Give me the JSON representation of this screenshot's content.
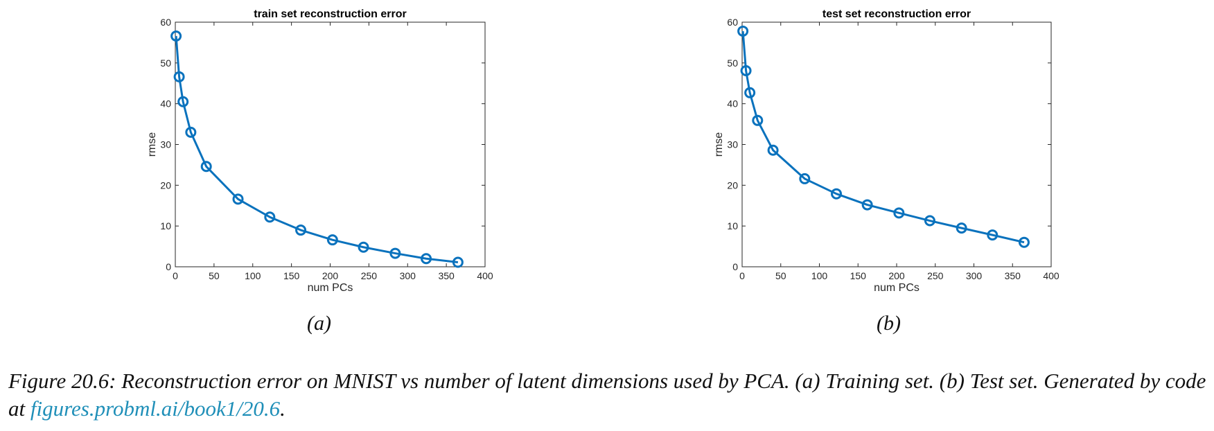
{
  "chart_data": [
    {
      "type": "line",
      "title": "train set reconstruction error",
      "xlabel": "num PCs",
      "ylabel": "rmse",
      "xlim": [
        0,
        400
      ],
      "ylim": [
        0,
        60
      ],
      "xticks": [
        0,
        50,
        100,
        150,
        200,
        250,
        300,
        350,
        400
      ],
      "yticks": [
        0,
        10,
        20,
        30,
        40,
        50,
        60
      ],
      "grid": false,
      "marker": "circle",
      "color": "#0a72bd",
      "x": [
        1,
        5,
        10,
        20,
        40,
        81,
        122,
        162,
        203,
        243,
        284,
        324,
        365
      ],
      "y": [
        56.6,
        46.6,
        40.5,
        33.0,
        24.6,
        16.6,
        12.2,
        9.0,
        6.6,
        4.8,
        3.3,
        2.0,
        1.1
      ]
    },
    {
      "type": "line",
      "title": "test set reconstruction error",
      "xlabel": "num PCs",
      "ylabel": "rmse",
      "xlim": [
        0,
        400
      ],
      "ylim": [
        0,
        60
      ],
      "xticks": [
        0,
        50,
        100,
        150,
        200,
        250,
        300,
        350,
        400
      ],
      "yticks": [
        0,
        10,
        20,
        30,
        40,
        50,
        60
      ],
      "grid": false,
      "marker": "circle",
      "color": "#0a72bd",
      "x": [
        1,
        5,
        10,
        20,
        40,
        81,
        122,
        162,
        203,
        243,
        284,
        324,
        365
      ],
      "y": [
        57.8,
        48.1,
        42.7,
        35.9,
        28.6,
        21.6,
        17.9,
        15.2,
        13.2,
        11.3,
        9.5,
        7.8,
        6.0
      ]
    }
  ],
  "panel_labels": [
    "(a)",
    "(b)"
  ],
  "caption": {
    "text": "Figure 20.6: Reconstruction error on MNIST vs number of latent dimensions used by PCA. (a) Training set. (b) Test set. Generated by code at ",
    "link": "figures.probml.ai/book1/20.6",
    "end": "."
  }
}
